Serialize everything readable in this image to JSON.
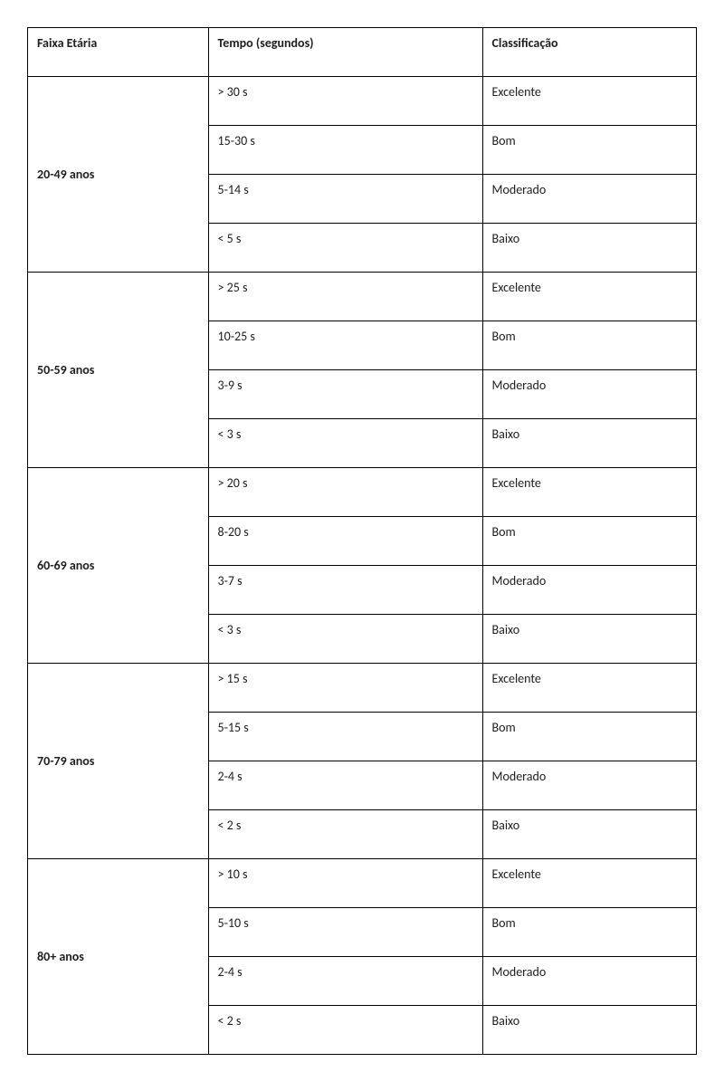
{
  "table": {
    "headers": {
      "age": "Faixa Etária",
      "time": "Tempo (segundos)",
      "classification": "Classificação"
    },
    "groups": [
      {
        "age": "20-49 anos",
        "rows": [
          {
            "time": "> 30 s",
            "classification": "Excelente"
          },
          {
            "time": "15-30 s",
            "classification": "Bom"
          },
          {
            "time": "5-14 s",
            "classification": "Moderado"
          },
          {
            "time": "< 5 s",
            "classification": "Baixo"
          }
        ]
      },
      {
        "age": "50-59 anos",
        "rows": [
          {
            "time": "> 25 s",
            "classification": "Excelente"
          },
          {
            "time": "10-25 s",
            "classification": "Bom"
          },
          {
            "time": "3-9 s",
            "classification": "Moderado"
          },
          {
            "time": "< 3 s",
            "classification": "Baixo"
          }
        ]
      },
      {
        "age": "60-69 anos",
        "rows": [
          {
            "time": "> 20 s",
            "classification": "Excelente"
          },
          {
            "time": "8-20 s",
            "classification": "Bom"
          },
          {
            "time": "3-7 s",
            "classification": "Moderado"
          },
          {
            "time": "< 3 s",
            "classification": "Baixo"
          }
        ]
      },
      {
        "age": "70-79 anos",
        "rows": [
          {
            "time": "> 15 s",
            "classification": "Excelente"
          },
          {
            "time": "5-15 s",
            "classification": "Bom"
          },
          {
            "time": "2-4 s",
            "classification": "Moderado"
          },
          {
            "time": "< 2 s",
            "classification": "Baixo"
          }
        ]
      },
      {
        "age": "80+ anos",
        "rows": [
          {
            "time": "> 10 s",
            "classification": "Excelente"
          },
          {
            "time": "5-10 s",
            "classification": "Bom"
          },
          {
            "time": "2-4 s",
            "classification": "Moderado"
          },
          {
            "time": "< 2 s",
            "classification": "Baixo"
          }
        ]
      }
    ]
  }
}
